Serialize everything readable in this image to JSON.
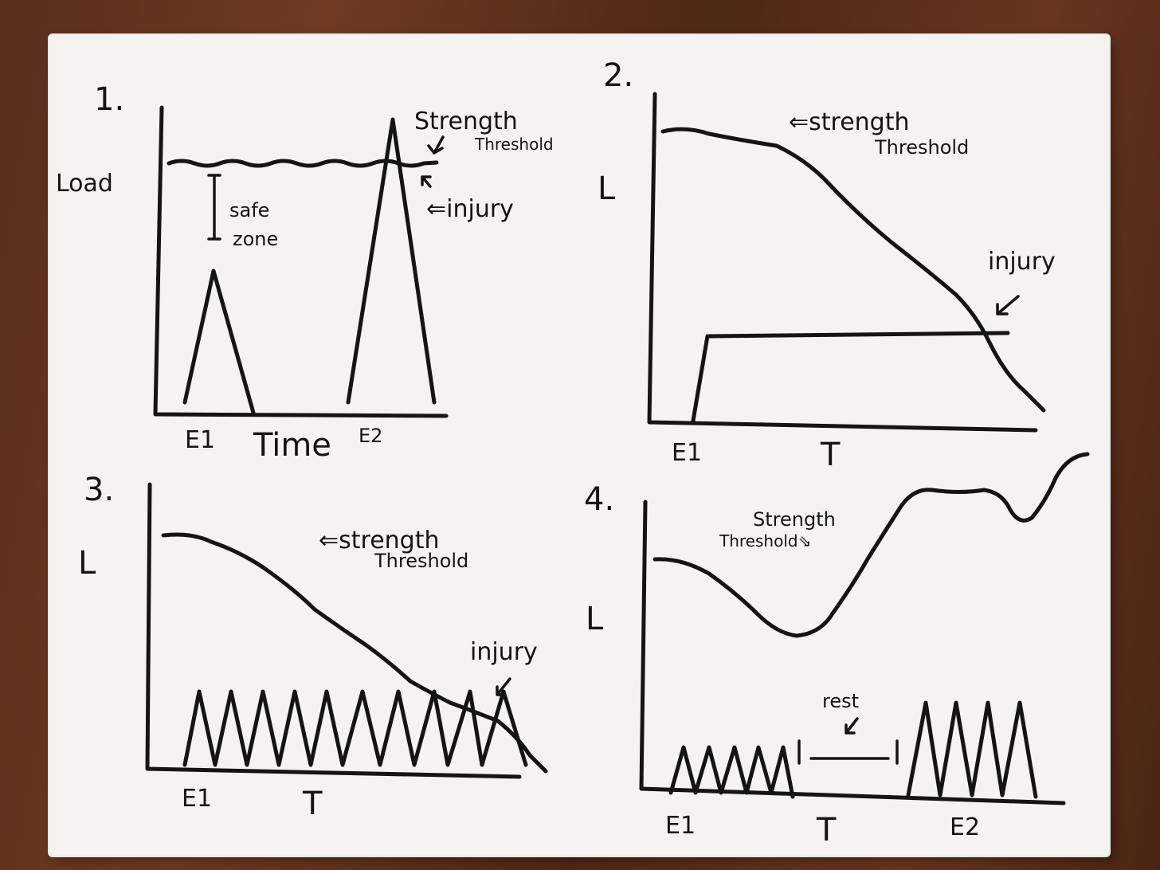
{
  "panels": [
    {
      "number": "1.",
      "y_label": "Load",
      "x_label": "Time",
      "events": [
        "E1",
        "E2"
      ],
      "annotations": {
        "strength": "Strength",
        "threshold": "Threshold",
        "injury": "⇐injury",
        "safe_zone_1": "safe",
        "safe_zone_2": "zone"
      }
    },
    {
      "number": "2.",
      "y_label": "L",
      "x_label": "T",
      "events": [
        "E1"
      ],
      "annotations": {
        "strength": "⇐strength",
        "threshold": "Threshold",
        "injury": "injury"
      }
    },
    {
      "number": "3.",
      "y_label": "L",
      "x_label": "T",
      "events": [
        "E1"
      ],
      "annotations": {
        "strength": "⇐strength",
        "threshold": "Threshold",
        "injury": "injury"
      }
    },
    {
      "number": "4.",
      "y_label": "L",
      "x_label": "T",
      "events": [
        "E1",
        "E2"
      ],
      "annotations": {
        "strength": "Strength",
        "threshold": "Threshold⇘",
        "rest": "rest"
      }
    }
  ],
  "colors": {
    "ink": "#141414",
    "paper": "#f4f3f1",
    "wood": "#5a2f1c"
  }
}
